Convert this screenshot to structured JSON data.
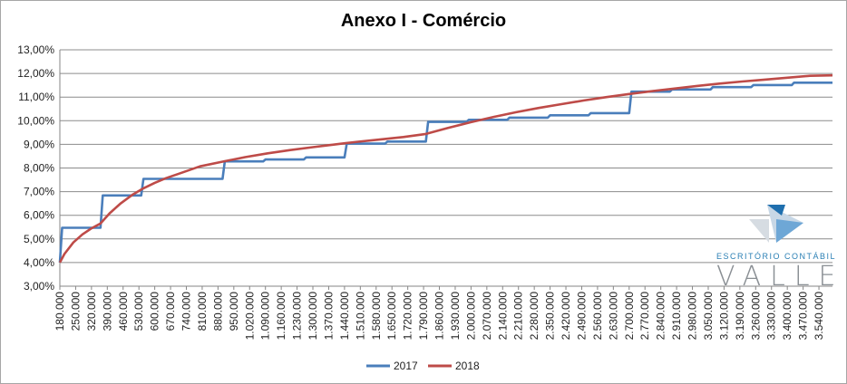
{
  "chart_data": {
    "type": "line",
    "title": "Anexo I - Comércio",
    "xlabel": "",
    "ylabel": "",
    "ylim": [
      3,
      13
    ],
    "yticks": [
      "3,00%",
      "4,00%",
      "5,00%",
      "6,00%",
      "7,00%",
      "8,00%",
      "9,00%",
      "10,00%",
      "11,00%",
      "12,00%",
      "13,00%"
    ],
    "xticks": [
      "180.000",
      "250.000",
      "320.000",
      "390.000",
      "460.000",
      "530.000",
      "600.000",
      "670.000",
      "740.000",
      "810.000",
      "880.000",
      "950.000",
      "1.020.000",
      "1.090.000",
      "1.160.000",
      "1.230.000",
      "1.300.000",
      "1.370.000",
      "1.440.000",
      "1.510.000",
      "1.580.000",
      "1.650.000",
      "1.720.000",
      "1.790.000",
      "1.860.000",
      "1.930.000",
      "2.000.000",
      "2.070.000",
      "2.140.000",
      "2.210.000",
      "2.280.000",
      "2.350.000",
      "2.420.000",
      "2.490.000",
      "2.560.000",
      "2.630.000",
      "2.700.000",
      "2.770.000",
      "2.840.000",
      "2.910.000",
      "2.980.000",
      "3.050.000",
      "3.120.000",
      "3.190.000",
      "3.260.000",
      "3.330.000",
      "3.400.000",
      "3.470.000",
      "3.540.000"
    ],
    "xrange": [
      180000,
      3600000
    ],
    "grid": true,
    "legend_position": "bottom",
    "series": [
      {
        "name": "2017",
        "color": "#4a7ebb",
        "step_points": [
          [
            180000,
            4.0
          ],
          [
            190000,
            5.47
          ],
          [
            360000,
            5.47
          ],
          [
            370000,
            6.84
          ],
          [
            540000,
            6.84
          ],
          [
            550000,
            7.54
          ],
          [
            900000,
            7.54
          ],
          [
            910000,
            8.28
          ],
          [
            1080000,
            8.28
          ],
          [
            1090000,
            8.36
          ],
          [
            1260000,
            8.36
          ],
          [
            1270000,
            8.45
          ],
          [
            1440000,
            8.45
          ],
          [
            1450000,
            9.03
          ],
          [
            1620000,
            9.03
          ],
          [
            1630000,
            9.12
          ],
          [
            1800000,
            9.12
          ],
          [
            1810000,
            9.95
          ],
          [
            1980000,
            9.95
          ],
          [
            1990000,
            10.04
          ],
          [
            2160000,
            10.04
          ],
          [
            2170000,
            10.13
          ],
          [
            2340000,
            10.13
          ],
          [
            2350000,
            10.23
          ],
          [
            2520000,
            10.23
          ],
          [
            2530000,
            10.32
          ],
          [
            2700000,
            10.32
          ],
          [
            2710000,
            11.23
          ],
          [
            2880000,
            11.23
          ],
          [
            2890000,
            11.32
          ],
          [
            3060000,
            11.32
          ],
          [
            3070000,
            11.42
          ],
          [
            3240000,
            11.42
          ],
          [
            3250000,
            11.51
          ],
          [
            3420000,
            11.51
          ],
          [
            3430000,
            11.61
          ],
          [
            3600000,
            11.61
          ]
        ]
      },
      {
        "name": "2018",
        "color": "#be4b48",
        "formula": "4% + (R*0.073 - 5940)/R for R <= 360000; 7.3%..9.5%..14.3% brackets",
        "points": [
          [
            180000,
            4.0
          ],
          [
            200000,
            4.36
          ],
          [
            240000,
            4.85
          ],
          [
            280000,
            5.19
          ],
          [
            320000,
            5.45
          ],
          [
            360000,
            5.65
          ],
          [
            400000,
            6.08
          ],
          [
            450000,
            6.51
          ],
          [
            500000,
            6.86
          ],
          [
            550000,
            7.14
          ],
          [
            600000,
            7.37
          ],
          [
            650000,
            7.57
          ],
          [
            720000,
            7.8
          ],
          [
            800000,
            8.07
          ],
          [
            900000,
            8.27
          ],
          [
            1000000,
            8.46
          ],
          [
            1100000,
            8.62
          ],
          [
            1200000,
            8.76
          ],
          [
            1300000,
            8.88
          ],
          [
            1400000,
            9.0
          ],
          [
            1500000,
            9.11
          ],
          [
            1600000,
            9.21
          ],
          [
            1700000,
            9.31
          ],
          [
            1800000,
            9.44
          ],
          [
            1900000,
            9.7
          ],
          [
            2000000,
            9.94
          ],
          [
            2100000,
            10.16
          ],
          [
            2200000,
            10.36
          ],
          [
            2300000,
            10.54
          ],
          [
            2400000,
            10.7
          ],
          [
            2500000,
            10.86
          ],
          [
            2600000,
            11.0
          ],
          [
            2700000,
            11.13
          ],
          [
            2800000,
            11.25
          ],
          [
            2900000,
            11.36
          ],
          [
            3000000,
            11.47
          ],
          [
            3100000,
            11.57
          ],
          [
            3200000,
            11.66
          ],
          [
            3300000,
            11.74
          ],
          [
            3400000,
            11.82
          ],
          [
            3500000,
            11.9
          ],
          [
            3600000,
            11.92
          ]
        ]
      }
    ]
  },
  "logo": {
    "subtitle": "ESCRITÓRIO CONTÁBIL",
    "name": "VALLE"
  }
}
